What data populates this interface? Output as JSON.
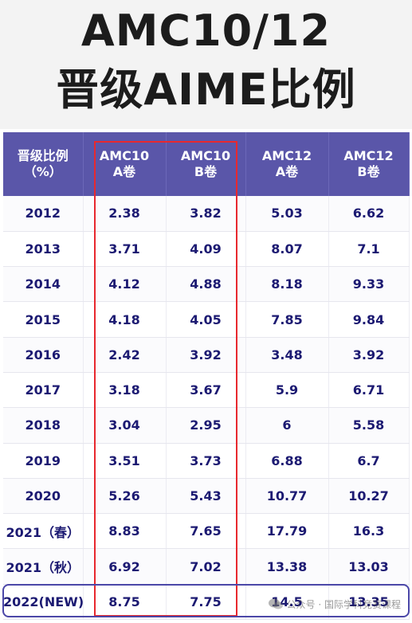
{
  "title": {
    "line1": "AMC10/12",
    "line2": "晋级AIME比例"
  },
  "table": {
    "headers": [
      {
        "line1": "晋级比例",
        "line2": "（%）"
      },
      {
        "line1": "AMC10",
        "line2": "A卷"
      },
      {
        "line1": "AMC10",
        "line2": "B卷"
      },
      {
        "line1": "AMC12",
        "line2": "A卷"
      },
      {
        "line1": "AMC12",
        "line2": "B卷"
      }
    ],
    "rows": [
      [
        "2012",
        "2.38",
        "3.82",
        "5.03",
        "6.62"
      ],
      [
        "2013",
        "3.71",
        "4.09",
        "8.07",
        "7.1"
      ],
      [
        "2014",
        "4.12",
        "4.88",
        "8.18",
        "9.33"
      ],
      [
        "2015",
        "4.18",
        "4.05",
        "7.85",
        "9.84"
      ],
      [
        "2016",
        "2.42",
        "3.92",
        "3.48",
        "3.92"
      ],
      [
        "2017",
        "3.18",
        "3.67",
        "5.9",
        "6.71"
      ],
      [
        "2018",
        "3.04",
        "2.95",
        "6",
        "5.58"
      ],
      [
        "2019",
        "3.51",
        "3.73",
        "6.88",
        "6.7"
      ],
      [
        "2020",
        "5.26",
        "5.43",
        "10.77",
        "10.27"
      ],
      [
        "2021（春）",
        "8.83",
        "7.65",
        "17.79",
        "16.3"
      ],
      [
        "2021（秋）",
        "6.92",
        "7.02",
        "13.38",
        "13.03"
      ],
      [
        "2022(NEW)",
        "8.75",
        "7.75",
        "14.5",
        "13.35"
      ]
    ]
  },
  "watermark": {
    "text": "公众号 · 国际学科竞赛课程",
    "icon": "wechat-icon"
  },
  "colors": {
    "header_bg": "#5a56a9",
    "cell_text": "#1c1a72",
    "highlight_frame": "#e8282e",
    "new_row_frame": "#4b47a8"
  }
}
